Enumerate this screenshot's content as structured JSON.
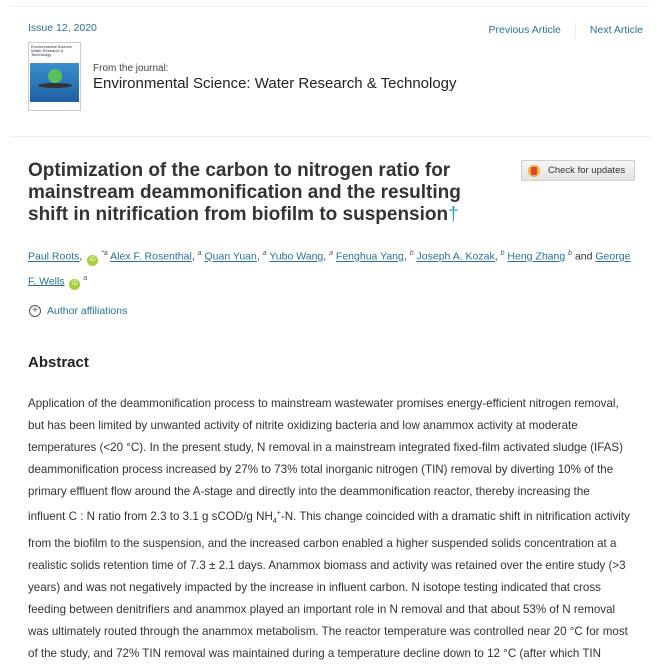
{
  "header": {
    "issue": "Issue 12, 2020",
    "prev": "Previous Article",
    "next": "Next Article",
    "cover_text": "Environmental Science Water Research & Technology",
    "from_label": "From the journal:",
    "journal": "Environmental Science: Water Research & Technology"
  },
  "article": {
    "title": "Optimization of the carbon to nitrogen ratio for mainstream deammonification and the resulting shift in nitrification from biofilm to suspension",
    "dagger": "†",
    "check_updates": "Check for updates",
    "authors": [
      {
        "name": "Paul Roots",
        "sep": ",",
        "orcid": true,
        "sup": "*a"
      },
      {
        "name": "Alex F. Rosenthal",
        "sep": ",",
        "sup": "a"
      },
      {
        "name": "Quan Yuan",
        "sep": ",",
        "sup": "a"
      },
      {
        "name": "Yubo Wang",
        "sep": ",",
        "sup": "a"
      },
      {
        "name": "Fenghua Yang",
        "sep": ",",
        "sup": "b"
      },
      {
        "name": "Joseph A. Kozak",
        "sep": ",",
        "sup": "b"
      },
      {
        "name": "Heng Zhang",
        "sep": "",
        "sup": "b",
        "after": " and "
      },
      {
        "name": "George F. Wells",
        "sep": "",
        "orcid": true,
        "sup": "a"
      }
    ],
    "orcid_label": "iD",
    "affiliations": "Author affiliations"
  },
  "abstract": {
    "heading": "Abstract",
    "lines": [
      "Application of the deammonification process to mainstream wastewater promises energy-efficient nitrogen removal,",
      "but has been limited by unwanted activity of nitrite oxidizing bacteria and low anammox activity at moderate",
      "temperatures (<20 °C). In the present study, N removal in a mainstream integrated fixed-film activated sludge (IFAS)",
      "deammonification process increased by 27% to 73% total inorganic nitrogen (TIN) removal by diverting 10% of the",
      "primary effluent flow around the A-stage and directly into the deammonification reactor, thereby increasing the",
      "from the biofilm to the suspension, and the increased carbon enabled a higher suspended solids concentration at a",
      "realistic solids retention time of 7.3 ± 2.1 days. Anammox biomass and activity was retained over the entire study (>3",
      "years) and was not negatively impacted by the increase in influent carbon. N isotope testing indicated that cross",
      "feeding between denitrifiers and anammox played an important role in N removal and that about 53% of N removal",
      "was ultimately routed through the anammox metabolism. The reactor temperature was controlled near 20 °C for most",
      "of the study, and 72% TIN removal was maintained during a temperature decline down to 12 °C (after which TIN"
    ],
    "nh4_line": {
      "pre": "influent C : N ratio from 2.3 to 3.1 g sCOD/g NH",
      "sub": "4",
      "sup": "+",
      "post": "-N. This change coincided with a dramatic shift in nitrification activity"
    }
  }
}
